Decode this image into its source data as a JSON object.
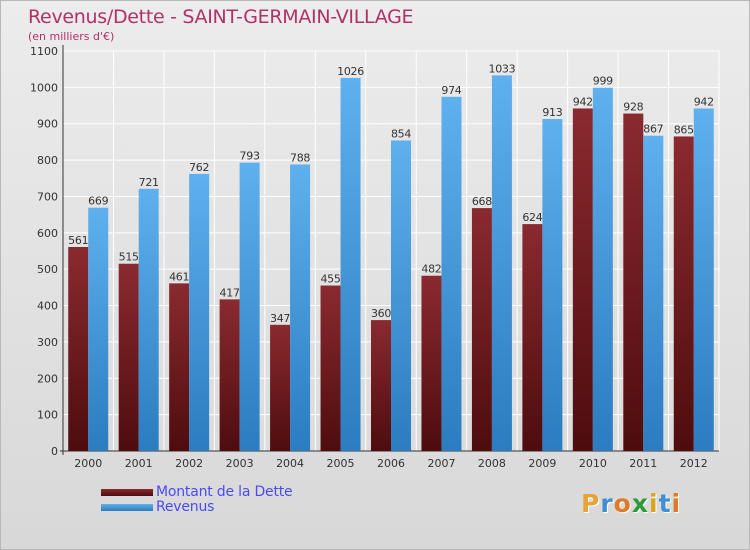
{
  "chart_data": {
    "type": "bar",
    "title": "Revenus/Dette - SAINT-GERMAIN-VILLAGE",
    "subtitle": "(en milliers d'€)",
    "categories": [
      "2000",
      "2001",
      "2002",
      "2003",
      "2004",
      "2005",
      "2006",
      "2007",
      "2008",
      "2009",
      "2010",
      "2011",
      "2012"
    ],
    "series": [
      {
        "name": "Montant de la Dette",
        "color": "#7a1f24",
        "values": [
          561,
          515,
          461,
          417,
          347,
          455,
          360,
          482,
          668,
          624,
          942,
          928,
          865
        ]
      },
      {
        "name": "Revenus",
        "color": "#4ba3e8",
        "values": [
          669,
          721,
          762,
          793,
          788,
          1026,
          854,
          974,
          1033,
          913,
          999,
          867,
          942
        ]
      }
    ],
    "ylim": [
      0,
      1100
    ],
    "yticks": [
      0,
      100,
      200,
      300,
      400,
      500,
      600,
      700,
      800,
      900,
      1000,
      1100
    ],
    "grid": true,
    "legend": "bottom-left"
  },
  "logo": {
    "text": "Proxiti",
    "letter_colors": [
      "#e8a23a",
      "#3f8fd4",
      "#e07a2a",
      "#2e9a3a",
      "#d9a520",
      "#3f8fd4",
      "#e07a2a"
    ]
  }
}
